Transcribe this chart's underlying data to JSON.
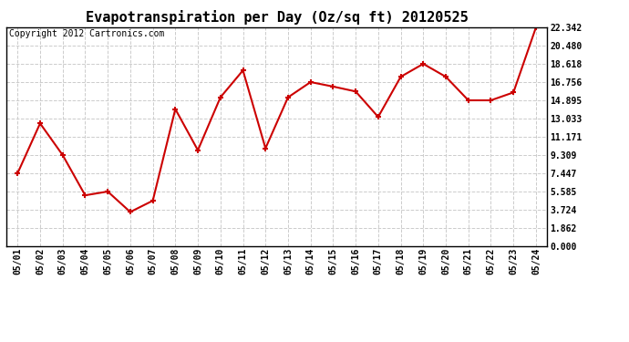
{
  "title": "Evapotranspiration per Day (Oz/sq ft) 20120525",
  "copyright": "Copyright 2012 Cartronics.com",
  "dates": [
    "05/01",
    "05/02",
    "05/03",
    "05/04",
    "05/05",
    "05/06",
    "05/07",
    "05/08",
    "05/09",
    "05/10",
    "05/11",
    "05/12",
    "05/13",
    "05/14",
    "05/15",
    "05/16",
    "05/17",
    "05/18",
    "05/19",
    "05/20",
    "05/21",
    "05/22",
    "05/23",
    "05/24"
  ],
  "values": [
    7.447,
    12.54,
    9.309,
    5.2,
    5.585,
    3.5,
    4.65,
    14.0,
    9.8,
    15.2,
    17.95,
    10.0,
    15.2,
    16.756,
    16.3,
    15.8,
    13.2,
    17.3,
    18.618,
    17.3,
    14.895,
    14.895,
    15.7,
    22.342
  ],
  "yticks": [
    0.0,
    1.862,
    3.724,
    5.585,
    7.447,
    9.309,
    11.171,
    13.033,
    14.895,
    16.756,
    18.618,
    20.48,
    22.342
  ],
  "ylim": [
    0.0,
    22.342
  ],
  "line_color": "#cc0000",
  "marker": "+",
  "marker_size": 5,
  "marker_lw": 1.5,
  "linewidth": 1.5,
  "bg_color": "#ffffff",
  "grid_color": "#cccccc",
  "title_fontsize": 11,
  "tick_fontsize": 7,
  "copyright_fontsize": 7
}
